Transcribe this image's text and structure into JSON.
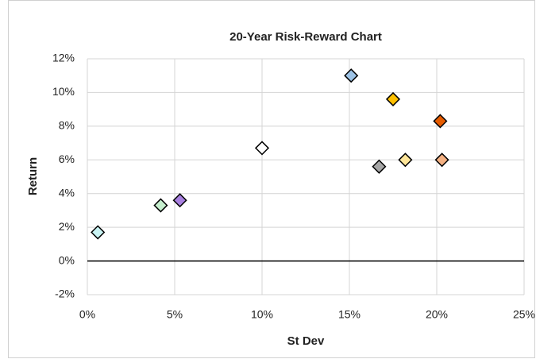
{
  "chart_data": {
    "type": "scatter",
    "title": "20-Year Risk-Reward Chart",
    "x_label": "St Dev",
    "y_label": "Return",
    "x": [
      0.6,
      4.2,
      5.3,
      10.0,
      15.1,
      17.5,
      16.7,
      18.2,
      20.2,
      20.3
    ],
    "values": [
      1.7,
      3.3,
      3.6,
      6.7,
      11.0,
      9.6,
      5.6,
      6.0,
      8.3,
      6.0
    ],
    "colors": [
      "#c9f3f3",
      "#c6efce",
      "#a880e0",
      "#ffffff",
      "#9dc3e6",
      "#ffc000",
      "#a6a6a6",
      "#ffe699",
      "#e65c00",
      "#f4b183"
    ],
    "xlim": [
      0,
      25
    ],
    "ylim": [
      -2,
      12
    ],
    "xticks": [
      {
        "value": 0,
        "label": "0%"
      },
      {
        "value": 5,
        "label": "5%"
      },
      {
        "value": 10,
        "label": "10%"
      },
      {
        "value": 15,
        "label": "15%"
      },
      {
        "value": 20,
        "label": "20%"
      },
      {
        "value": 25,
        "label": "25%"
      }
    ],
    "yticks": [
      {
        "value": -2,
        "label": "-2%"
      },
      {
        "value": 0,
        "label": "0%"
      },
      {
        "value": 2,
        "label": "2%"
      },
      {
        "value": 4,
        "label": "4%"
      },
      {
        "value": 6,
        "label": "6%"
      },
      {
        "value": 8,
        "label": "8%"
      },
      {
        "value": 10,
        "label": "10%"
      },
      {
        "value": 12,
        "label": "12%"
      }
    ],
    "grid": true
  }
}
